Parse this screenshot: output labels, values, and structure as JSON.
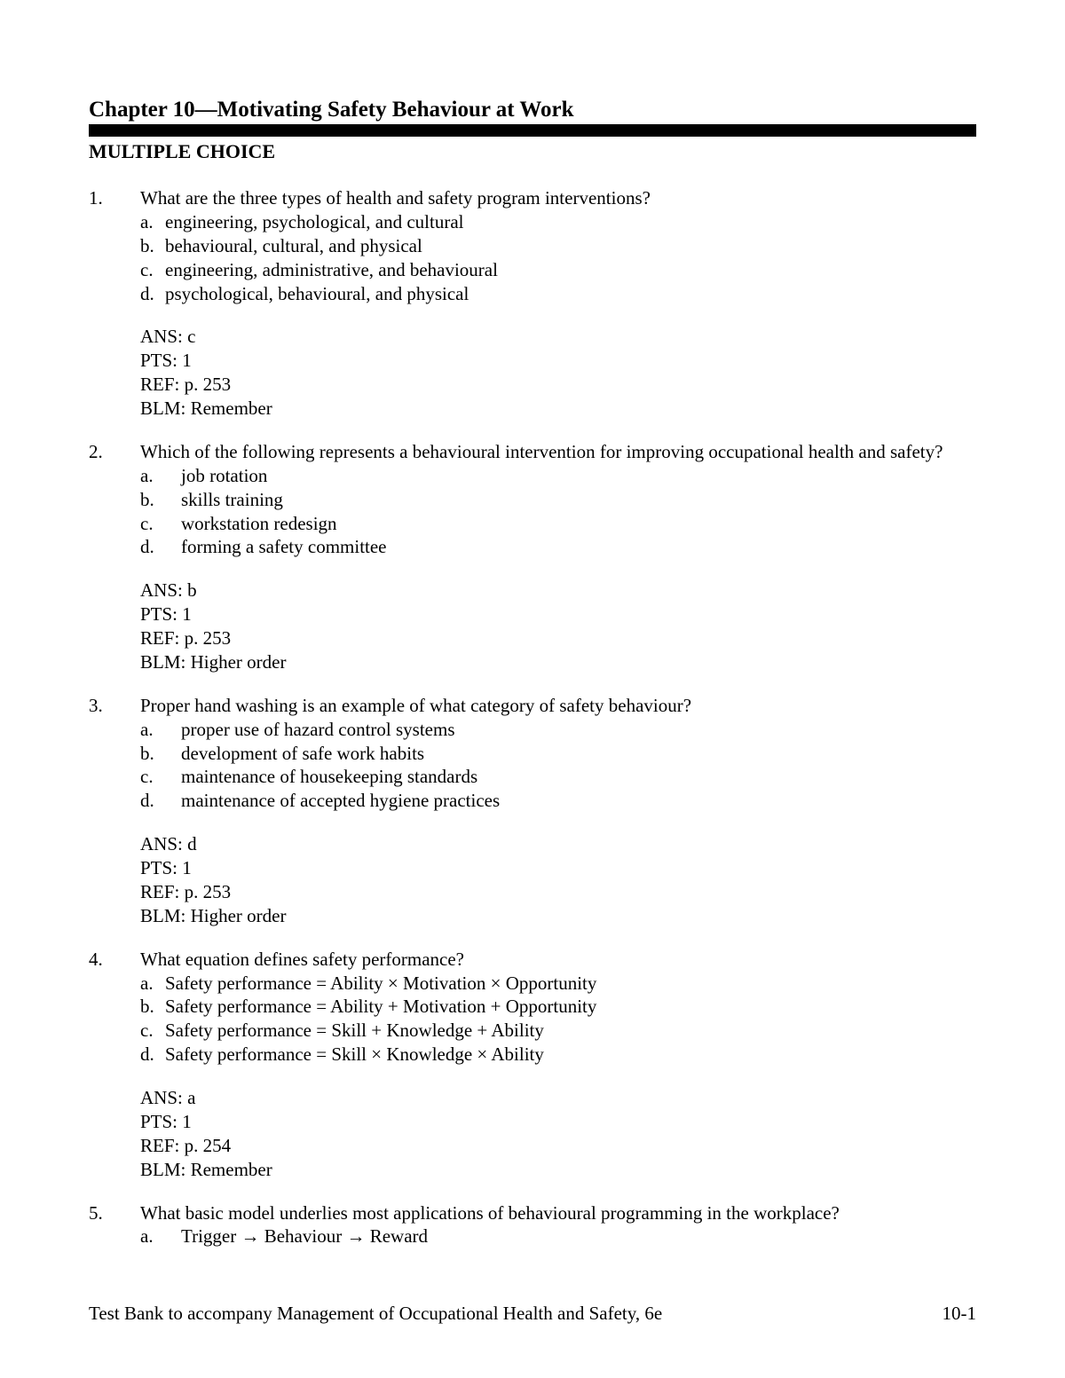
{
  "chapter_title": "Chapter 10—Motivating Safety Behaviour at Work",
  "section_heading": "MULTIPLE CHOICE",
  "questions": [
    {
      "number": "1.",
      "stem": "What are the three types of health and safety program interventions?",
      "options": [
        {
          "letter": "a.",
          "text": "engineering, psychological, and cultural"
        },
        {
          "letter": "b.",
          "text": "behavioural, cultural, and physical"
        },
        {
          "letter": "c.",
          "text": "engineering, administrative, and behavioural"
        },
        {
          "letter": "d.",
          "text": "psychological, behavioural, and physical"
        }
      ],
      "ans": "ANS: c",
      "pts": "PTS: 1",
      "ref": "REF: p. 253",
      "blm": "BLM: Remember"
    },
    {
      "number": "2.",
      "stem": "Which of the following represents a behavioural intervention for improving occupational health and safety?",
      "options": [
        {
          "letter": "a.",
          "text": "job rotation"
        },
        {
          "letter": "b.",
          "text": "skills training"
        },
        {
          "letter": "c.",
          "text": "workstation redesign"
        },
        {
          "letter": "d.",
          "text": "forming a safety committee"
        }
      ],
      "ans": "ANS: b",
      "pts": "PTS: 1",
      "ref": "REF: p. 253",
      "blm": "BLM: Higher order"
    },
    {
      "number": "3.",
      "stem": "Proper hand washing is an example of what category of safety behaviour?",
      "options": [
        {
          "letter": "a.",
          "text": "proper use of hazard control systems"
        },
        {
          "letter": "b.",
          "text": "development of safe work habits"
        },
        {
          "letter": "c.",
          "text": "maintenance of housekeeping standards"
        },
        {
          "letter": "d.",
          "text": "maintenance of accepted hygiene practices"
        }
      ],
      "ans": "ANS: d",
      "pts": "PTS: 1",
      "ref": "REF: p. 253",
      "blm": "BLM: Higher order"
    },
    {
      "number": "4.",
      "stem": "What equation defines safety performance?",
      "options": [
        {
          "letter": "a.",
          "text": "Safety performance = Ability × Motivation × Opportunity"
        },
        {
          "letter": "b.",
          "text": "Safety performance = Ability + Motivation + Opportunity"
        },
        {
          "letter": "c.",
          "text": "Safety performance = Skill + Knowledge + Ability"
        },
        {
          "letter": "d.",
          "text": "Safety performance = Skill × Knowledge × Ability"
        }
      ],
      "ans": "ANS: a",
      "pts": "PTS: 1",
      "ref": "REF: p. 254",
      "blm": "BLM: Remember"
    },
    {
      "number": "5.",
      "stem": "What basic model underlies most applications of behavioural programming in the workplace?",
      "options": [
        {
          "letter": "a.",
          "text": "Trigger → Behaviour → Reward"
        }
      ]
    }
  ],
  "footer_left": "Test Bank to accompany Management of Occupational Health and Safety, 6e",
  "footer_right": "10-1"
}
